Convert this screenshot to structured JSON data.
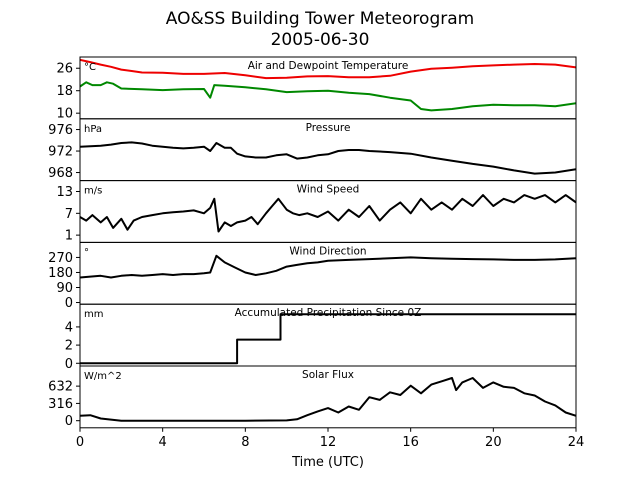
{
  "figure": {
    "title_line1": "AO&SS Building Tower Meteorogram",
    "title_line2": "2005-06-30",
    "xlabel": "Time (UTC)",
    "xticks": [
      "0",
      "4",
      "8",
      "12",
      "16",
      "20",
      "24"
    ]
  },
  "chart_data": {
    "type": "line",
    "title": "AO&SS Building Tower Meteorogram 2005-06-30",
    "xlabel": "Time (UTC)",
    "xlim": [
      0,
      24
    ],
    "panels": [
      {
        "title": "Air and Dewpoint Temperature",
        "unit": "°C",
        "ylim": [
          8,
          30
        ],
        "yticks": [
          "26",
          "18",
          "10"
        ],
        "ytick_values": [
          26,
          18,
          10
        ],
        "series": [
          {
            "color": "#ee0000",
            "x": [
              0,
              0.5,
              1,
              1.5,
              2,
              2.5,
              3,
              4,
              5,
              6,
              7,
              8,
              9,
              10,
              11,
              12,
              13,
              14,
              15,
              16,
              17,
              18,
              19,
              20,
              21,
              22,
              23,
              24
            ],
            "y": [
              29,
              28.2,
              27.3,
              26.5,
              25.5,
              25,
              24.5,
              24.4,
              24,
              24,
              24.3,
              23.5,
              22.5,
              22.6,
              23.1,
              23.2,
              22.8,
              22.8,
              23.3,
              24.8,
              25.8,
              26.2,
              26.7,
              27,
              27.3,
              27.5,
              27.3,
              26.3
            ]
          },
          {
            "color": "#008800",
            "x": [
              0,
              0.3,
              0.6,
              1,
              1.3,
              1.6,
              2,
              3,
              4,
              5,
              6,
              6.3,
              6.5,
              7,
              8,
              9,
              10,
              11,
              12,
              13,
              14,
              15,
              16,
              16.5,
              17,
              18,
              19,
              20,
              21,
              22,
              23,
              24
            ],
            "y": [
              19.5,
              21,
              20,
              20,
              21,
              20.5,
              18.8,
              18.5,
              18.2,
              18.5,
              18.6,
              15.5,
              20,
              19.8,
              19.2,
              18.5,
              17.5,
              17.8,
              18,
              17.3,
              16.8,
              15.5,
              14.5,
              11.5,
              11,
              11.5,
              12.5,
              13,
              12.8,
              12.8,
              12.5,
              13.5
            ]
          }
        ]
      },
      {
        "title": "Pressure",
        "unit": "hPa",
        "ylim": [
          966.5,
          978
        ],
        "yticks": [
          "976",
          "972",
          "968"
        ],
        "ytick_values": [
          976,
          972,
          968
        ],
        "series": [
          {
            "color": "#000000",
            "x": [
              0,
              0.5,
              1,
              1.5,
              2,
              2.5,
              3,
              3.5,
              4,
              4.5,
              5,
              5.5,
              6,
              6.3,
              6.6,
              7,
              7.3,
              7.6,
              8,
              8.5,
              9,
              9.5,
              10,
              10.5,
              11,
              11.5,
              12,
              12.5,
              13,
              13.5,
              14,
              15,
              16,
              17,
              18,
              19,
              20,
              21,
              22,
              23,
              24
            ],
            "y": [
              972.8,
              972.9,
              973,
              973.2,
              973.5,
              973.6,
              973.4,
              973,
              972.8,
              972.6,
              972.5,
              972.6,
              972.8,
              972,
              973.5,
              972.6,
              972.6,
              971.5,
              971,
              970.8,
              970.8,
              971.2,
              971.4,
              970.6,
              970.8,
              971.2,
              971.4,
              972,
              972.2,
              972.2,
              972,
              971.8,
              971.5,
              970.8,
              970.2,
              969.6,
              969.1,
              968.4,
              967.8,
              968,
              968.6
            ]
          }
        ]
      },
      {
        "title": "Wind Speed",
        "unit": "m/s",
        "ylim": [
          -1,
          16
        ],
        "yticks": [
          "13",
          "7",
          "1"
        ],
        "ytick_values": [
          13,
          7,
          1
        ],
        "series": [
          {
            "color": "#000000",
            "x": [
              0,
              0.3,
              0.6,
              1,
              1.3,
              1.6,
              2,
              2.3,
              2.6,
              3,
              3.5,
              4,
              4.5,
              5,
              5.5,
              6,
              6.3,
              6.5,
              6.7,
              7,
              7.3,
              7.6,
              8,
              8.3,
              8.6,
              9,
              9.3,
              9.6,
              10,
              10.3,
              10.6,
              11,
              11.5,
              12,
              12.5,
              13,
              13.5,
              14,
              14.5,
              15,
              15.5,
              16,
              16.5,
              17,
              17.5,
              18,
              18.5,
              19,
              19.5,
              20,
              20.5,
              21,
              21.5,
              22,
              22.5,
              23,
              23.5,
              24
            ],
            "y": [
              6,
              5,
              6.5,
              4.5,
              6,
              3,
              5.5,
              2.5,
              5,
              6,
              6.5,
              7,
              7.3,
              7.5,
              7.8,
              7,
              8.5,
              11,
              2,
              4.5,
              3.5,
              4.5,
              5,
              6,
              4,
              7,
              9,
              11,
              8,
              7,
              6.5,
              7,
              6,
              7.5,
              5,
              8,
              6,
              9,
              5,
              8,
              10,
              7,
              11,
              8,
              10,
              8,
              11,
              9,
              12,
              9,
              11,
              10,
              12,
              11,
              12,
              10,
              12,
              10
            ]
          }
        ]
      },
      {
        "title": "Wind Direction",
        "unit": "°",
        "ylim": [
          -10,
          360
        ],
        "yticks": [
          "270",
          "180",
          "90",
          "0"
        ],
        "ytick_values": [
          270,
          180,
          90,
          0
        ],
        "series": [
          {
            "color": "#000000",
            "x": [
              0,
              0.5,
              1,
              1.5,
              2,
              2.5,
              3,
              3.5,
              4,
              4.5,
              5,
              5.5,
              6,
              6.3,
              6.6,
              7,
              7.5,
              8,
              8.5,
              9,
              9.5,
              10,
              10.5,
              11,
              11.5,
              12,
              13,
              14,
              15,
              16,
              17,
              18,
              19,
              20,
              21,
              22,
              23,
              24
            ],
            "y": [
              150,
              155,
              160,
              150,
              160,
              165,
              160,
              165,
              170,
              165,
              170,
              170,
              175,
              180,
              280,
              240,
              210,
              180,
              165,
              175,
              190,
              215,
              225,
              235,
              240,
              250,
              255,
              260,
              265,
              270,
              265,
              262,
              260,
              258,
              255,
              255,
              258,
              265
            ]
          }
        ]
      },
      {
        "title": "Accumulated Precipitation Since 0Z",
        "unit": "mm",
        "ylim": [
          -0.3,
          6.5
        ],
        "yticks": [
          "4",
          "2",
          "0"
        ],
        "ytick_values": [
          4,
          2,
          0
        ],
        "series": [
          {
            "color": "#000000",
            "x": [
              0,
              7.6,
              7.6,
              9.7,
              9.7,
              24
            ],
            "y": [
              0,
              0,
              2.6,
              2.6,
              5.4,
              5.4
            ]
          }
        ]
      },
      {
        "title": "Solar Flux",
        "unit": "W/m^2",
        "ylim": [
          -130,
          1000
        ],
        "yticks": [
          "632",
          "316",
          "0"
        ],
        "ytick_values": [
          632,
          316,
          0
        ],
        "series": [
          {
            "color": "#000000",
            "x": [
              0,
              0.5,
              1,
              2,
              4,
              6,
              8,
              10,
              10.5,
              11,
              11.5,
              12,
              12.5,
              13,
              13.5,
              14,
              14.5,
              15,
              15.5,
              16,
              16.5,
              17,
              17.5,
              18,
              18.2,
              18.5,
              19,
              19.5,
              20,
              20.5,
              21,
              21.5,
              22,
              22.5,
              23,
              23.5,
              24
            ],
            "y": [
              90,
              100,
              40,
              0,
              0,
              0,
              0,
              5,
              25,
              100,
              170,
              230,
              150,
              260,
              200,
              430,
              380,
              520,
              470,
              640,
              500,
              660,
              720,
              780,
              560,
              700,
              780,
              600,
              700,
              620,
              600,
              500,
              460,
              350,
              280,
              150,
              90
            ]
          }
        ]
      }
    ]
  }
}
